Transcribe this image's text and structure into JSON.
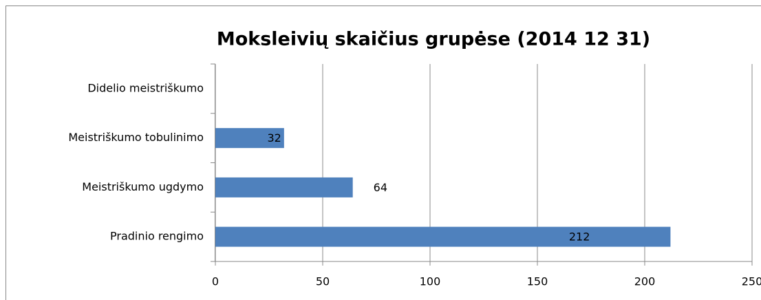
{
  "chart_data": {
    "type": "bar",
    "orientation": "horizontal",
    "title": "Moksleivių skaičius grupėse (2014 12 31)",
    "categories": [
      "Didelio meistriškumo",
      "Meistriškumo tobulinimo",
      "Meistriškumo ugdymo",
      "Pradinio rengimo"
    ],
    "values": [
      null,
      32,
      64,
      212
    ],
    "color": "#4f81bd",
    "xlim": [
      0,
      250
    ],
    "xticks": [
      0,
      50,
      100,
      150,
      200,
      250
    ],
    "grid": true
  }
}
